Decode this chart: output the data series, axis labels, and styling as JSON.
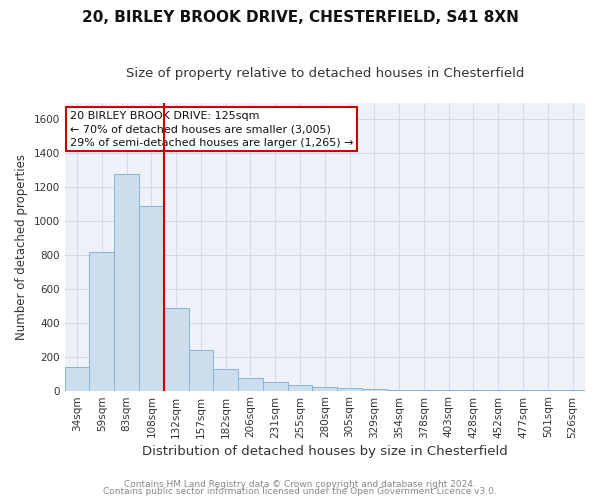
{
  "title1": "20, BIRLEY BROOK DRIVE, CHESTERFIELD, S41 8XN",
  "title2": "Size of property relative to detached houses in Chesterfield",
  "xlabel": "Distribution of detached houses by size in Chesterfield",
  "ylabel": "Number of detached properties",
  "footer1": "Contains HM Land Registry data © Crown copyright and database right 2024.",
  "footer2": "Contains public sector information licensed under the Open Government Licence v3.0.",
  "categories": [
    "34sqm",
    "59sqm",
    "83sqm",
    "108sqm",
    "132sqm",
    "157sqm",
    "182sqm",
    "206sqm",
    "231sqm",
    "255sqm",
    "280sqm",
    "305sqm",
    "329sqm",
    "354sqm",
    "378sqm",
    "403sqm",
    "428sqm",
    "452sqm",
    "477sqm",
    "501sqm",
    "526sqm"
  ],
  "values": [
    140,
    815,
    1280,
    1090,
    490,
    240,
    128,
    72,
    48,
    30,
    22,
    15,
    10,
    2,
    2,
    2,
    2,
    2,
    2,
    2,
    2
  ],
  "bar_color": "#ccdded",
  "bar_edge_color": "#8ab4d4",
  "vline_color": "#cc0000",
  "annotation_text": "20 BIRLEY BROOK DRIVE: 125sqm\n← 70% of detached houses are smaller (3,005)\n29% of semi-detached houses are larger (1,265) →",
  "annotation_box_color": "#cc0000",
  "ylim": [
    0,
    1700
  ],
  "yticks": [
    0,
    200,
    400,
    600,
    800,
    1000,
    1200,
    1400,
    1600
  ],
  "grid_color": "#d0daea",
  "bg_color": "#eef2f8",
  "title_fontsize": 11,
  "subtitle_fontsize": 9.5,
  "ylabel_fontsize": 8.5,
  "xlabel_fontsize": 9.5,
  "tick_fontsize": 7.5,
  "footer_fontsize": 6.5,
  "annotation_fontsize": 8,
  "vline_x_index": 4
}
